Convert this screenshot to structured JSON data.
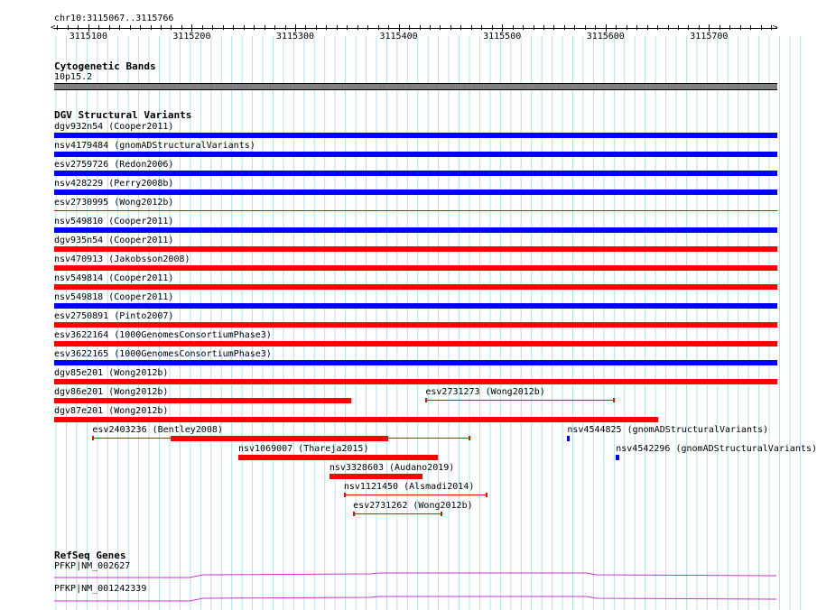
{
  "view": {
    "region": "chr10:3115067..3115766",
    "start": 3115067,
    "end": 3115766,
    "tick_labels": [
      "3115100",
      "3115200",
      "3115300",
      "3115400",
      "3115500",
      "3115600",
      "3115700"
    ],
    "tick_positions": [
      3115100,
      3115200,
      3115300,
      3115400,
      3115500,
      3115600,
      3115700
    ]
  },
  "colors": {
    "gain": "#0000ff",
    "loss": "#ff0000",
    "band": "#808080",
    "refseq": "#cc33cc",
    "grid": "#b0e0ec"
  },
  "tracks": {
    "cytoband": {
      "title": "Cytogenetic Bands",
      "band_label": "10p15.2"
    },
    "dgv": {
      "title": "DGV Structural Variants",
      "rows": [
        {
          "label": "dgv932n54 (Cooper2011)",
          "color": "gain",
          "start": 3115067,
          "end": 3115766,
          "style": "full"
        },
        {
          "label": "nsv4179484 (gnomADStructuralVariants)",
          "color": "gain",
          "start": 3115067,
          "end": 3115766,
          "style": "full"
        },
        {
          "label": "esv2759726 (Redon2006)",
          "color": "gain",
          "start": 3115067,
          "end": 3115766,
          "style": "full"
        },
        {
          "label": "nsv428229 (Perry2008b)",
          "color": "gain",
          "start": 3115067,
          "end": 3115766,
          "style": "full"
        },
        {
          "label": "esv2730995 (Wong2012b)",
          "color": "loss",
          "start": 3115067,
          "end": 3115766,
          "style": "thin"
        },
        {
          "label": "nsv549810 (Cooper2011)",
          "color": "gain",
          "start": 3115067,
          "end": 3115766,
          "style": "full"
        },
        {
          "label": "dgv935n54 (Cooper2011)",
          "color": "loss",
          "start": 3115067,
          "end": 3115766,
          "style": "full"
        },
        {
          "label": "nsv470913 (Jakobsson2008)",
          "color": "loss",
          "start": 3115067,
          "end": 3115766,
          "style": "full"
        },
        {
          "label": "nsv549814 (Cooper2011)",
          "color": "loss",
          "start": 3115067,
          "end": 3115766,
          "style": "full"
        },
        {
          "label": "nsv549818 (Cooper2011)",
          "color": "gain",
          "start": 3115067,
          "end": 3115766,
          "style": "full"
        },
        {
          "label": "esv2750891 (Pinto2007)",
          "color": "loss",
          "start": 3115067,
          "end": 3115766,
          "style": "full"
        },
        {
          "label": "esv3622164 (1000GenomesConsortiumPhase3)",
          "color": "loss",
          "start": 3115067,
          "end": 3115766,
          "style": "full"
        },
        {
          "label": "esv3622165 (1000GenomesConsortiumPhase3)",
          "color": "gain",
          "start": 3115067,
          "end": 3115766,
          "style": "full"
        },
        {
          "label": "dgv85e201 (Wong2012b)",
          "color": "loss",
          "start": 3115067,
          "end": 3115766,
          "style": "full"
        }
      ],
      "packed": [
        {
          "label": "dgv86e201 (Wong2012b)",
          "color": "loss",
          "start": 3115067,
          "end": 3115354,
          "style": "full",
          "row": 0
        },
        {
          "label": "esv2731273 (Wong2012b)",
          "color": "loss",
          "start": 3115426,
          "end": 3115609,
          "style": "thin",
          "row": 0
        },
        {
          "label": "dgv87e201 (Wong2012b)",
          "color": "loss",
          "start": 3115067,
          "end": 3115651,
          "style": "full",
          "row": 1
        },
        {
          "label": "esv2403236 (Bentley2008)",
          "color": "loss",
          "start": 3115104,
          "end": 3115469,
          "style": "thin",
          "thick_start": 3115180,
          "thick_end": 3115390,
          "row": 2
        },
        {
          "label": "nsv4544825 (gnomADStructuralVariants)",
          "color": "gain",
          "start": 3115563,
          "end": 3115565,
          "style": "full",
          "row": 2
        },
        {
          "label": "nsv1069007 (Thareja2015)",
          "color": "loss",
          "start": 3115245,
          "end": 3115438,
          "style": "full",
          "row": 3
        },
        {
          "label": "nsv4542296 (gnomADStructuralVariants)",
          "color": "gain",
          "start": 3115610,
          "end": 3115613,
          "style": "full",
          "row": 3
        },
        {
          "label": "nsv3328603 (Audano2019)",
          "color": "loss",
          "start": 3115333,
          "end": 3115423,
          "style": "full",
          "row": 4
        },
        {
          "label": "nsv1121450 (Alsmadi2014)",
          "color": "loss",
          "start": 3115347,
          "end": 3115486,
          "style": "thin",
          "row": 5
        },
        {
          "label": "esv2731262 (Wong2012b)",
          "color": "loss",
          "start": 3115356,
          "end": 3115442,
          "style": "thin",
          "row": 6
        }
      ]
    },
    "refseq": {
      "title": "RefSeq Genes",
      "rows": [
        {
          "label": "PFKP|NM_002627"
        },
        {
          "label": "PFKP|NM_001242339"
        }
      ]
    }
  }
}
